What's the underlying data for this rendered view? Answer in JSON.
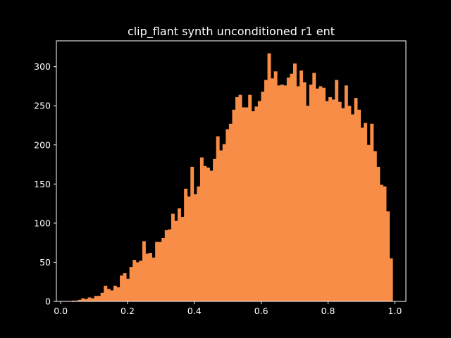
{
  "chart_data": {
    "type": "bar",
    "title": "clip_flant synth unconditioned r1 ent",
    "xlabel": "",
    "ylabel": "",
    "xlim": [
      -0.013,
      1.033
    ],
    "ylim": [
      0,
      333
    ],
    "xticks": [
      "0.0",
      "0.2",
      "0.4",
      "0.6",
      "0.8",
      "1.0"
    ],
    "yticks": [
      "0",
      "50",
      "100",
      "150",
      "200",
      "250",
      "300"
    ],
    "grid": false,
    "bar_color": "#f78d47",
    "bins": {
      "start": 0.0328,
      "end": 0.9933,
      "counts": [
        1,
        1,
        2,
        4,
        3,
        5,
        4,
        7,
        7,
        11,
        20,
        16,
        14,
        20,
        18,
        33,
        36,
        29,
        44,
        53,
        50,
        52,
        77,
        61,
        62,
        56,
        76,
        76,
        81,
        91,
        92,
        112,
        103,
        119,
        108,
        144,
        134,
        172,
        137,
        147,
        184,
        173,
        171,
        167,
        182,
        211,
        193,
        201,
        220,
        227,
        245,
        261,
        264,
        248,
        248,
        264,
        243,
        249,
        256,
        268,
        283,
        317,
        285,
        294,
        276,
        277,
        276,
        286,
        291,
        304,
        275,
        295,
        280,
        250,
        277,
        292,
        272,
        275,
        273,
        256,
        261,
        258,
        283,
        255,
        247,
        276,
        250,
        239,
        260,
        245,
        222,
        228,
        200,
        227,
        192,
        172,
        149,
        147,
        115,
        55
      ]
    }
  }
}
